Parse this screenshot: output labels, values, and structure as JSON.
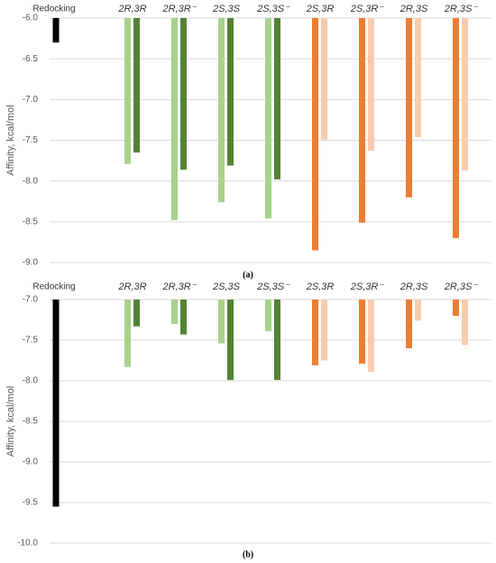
{
  "chart_data": [
    {
      "type": "bar",
      "title": "(a)",
      "ylabel": "Affinity, kcal/mol",
      "categories": [
        "Redocking",
        "2R,3R",
        "2R,3R⁻",
        "2S,3S",
        "2S,3S⁻",
        "2S,3R",
        "2S,3R⁻",
        "2R,3S",
        "2R,3S⁻"
      ],
      "series": [
        {
          "colors": [
            "#000000",
            "#a9d18e",
            "#a9d18e",
            "#a9d18e",
            "#a9d18e",
            "#ed7d31",
            "#ed7d31",
            "#ed7d31",
            "#ed7d31"
          ],
          "values": [
            -6.3,
            -7.79,
            -8.48,
            -8.26,
            -8.46,
            -8.85,
            -8.51,
            -8.2,
            -8.7
          ]
        },
        {
          "colors": [
            null,
            "#548235",
            "#548235",
            "#548235",
            "#548235",
            "#f8cbad",
            "#f8cbad",
            "#f8cbad",
            "#f8cbad"
          ],
          "values": [
            null,
            -7.65,
            -7.86,
            -7.81,
            -7.98,
            -7.49,
            -7.63,
            -7.46,
            -7.87
          ]
        }
      ],
      "ylim": [
        -9,
        -6
      ],
      "yticks": [
        {
          "value": -6,
          "label": "-6.0"
        },
        -6.5,
        {
          "value": -7,
          "label": "-7.0"
        },
        -7.5,
        {
          "value": -8,
          "label": "-8.0"
        },
        -8.5,
        {
          "value": -9,
          "label": "-9.0"
        }
      ],
      "grid": true
    },
    {
      "type": "bar",
      "title": "(b)",
      "ylabel": "Affinity, kcal/mol",
      "categories": [
        "Redocking",
        "2R,3R",
        "2R,3R⁻",
        "2S,3S",
        "2S,3S⁻",
        "2S,3R",
        "2S,3R⁻",
        "2R,3S",
        "2R,3S⁻"
      ],
      "series": [
        {
          "colors": [
            "#000000",
            "#a9d18e",
            "#a9d18e",
            "#a9d18e",
            "#a9d18e",
            "#ed7d31",
            "#ed7d31",
            "#ed7d31",
            "#ed7d31"
          ],
          "values": [
            -9.55,
            -7.83,
            -7.3,
            -7.54,
            -7.39,
            -7.81,
            -7.79,
            -7.6,
            -7.2
          ]
        },
        {
          "colors": [
            null,
            "#548235",
            "#548235",
            "#548235",
            "#548235",
            "#f8cbad",
            "#f8cbad",
            "#f8cbad",
            "#f8cbad"
          ],
          "values": [
            null,
            -7.33,
            -7.43,
            -7.99,
            -7.99,
            -7.75,
            -7.89,
            -7.26,
            -7.56
          ]
        }
      ],
      "ylim": [
        -10,
        -7
      ],
      "yticks": [
        {
          "value": -7,
          "label": "-7.0"
        },
        -7.5,
        {
          "value": -8,
          "label": "-8.0"
        },
        -8.5,
        {
          "value": -9,
          "label": "-9.0"
        },
        -9.5,
        {
          "value": -10,
          "label": "-10.0"
        }
      ],
      "grid": true
    }
  ]
}
